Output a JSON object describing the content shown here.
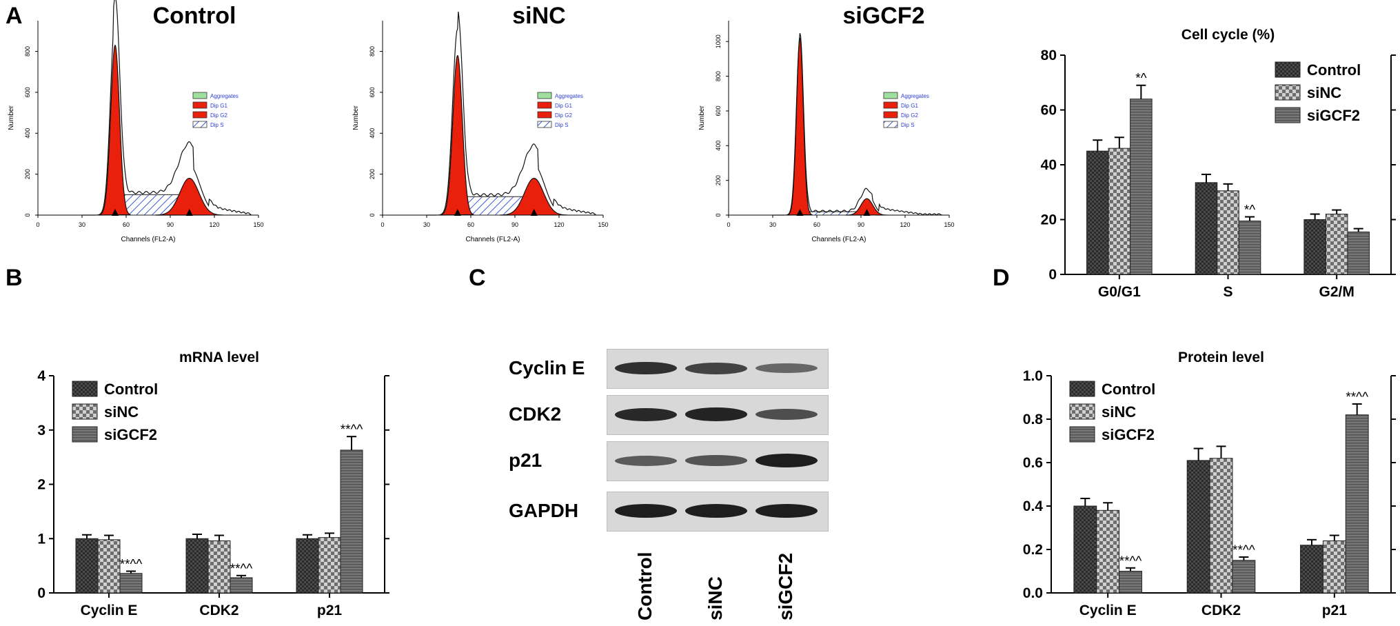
{
  "panels": {
    "A": "A",
    "B": "B",
    "C": "C",
    "D": "D"
  },
  "flow": {
    "titles": [
      "Control",
      "siNC",
      "siGCF2"
    ],
    "xlabel": "Channels (FL2-A)",
    "ylabel": "Number",
    "xticks": [
      "0",
      "30",
      "60",
      "90",
      "120",
      "150"
    ],
    "yticks": [
      [
        "0",
        "200",
        "400",
        "600",
        "800"
      ],
      [
        "0",
        "200",
        "400",
        "600",
        "800"
      ],
      [
        "0",
        "200",
        "400",
        "600",
        "800",
        "1000"
      ]
    ],
    "legend": [
      "Aggregates",
      "Dip G1",
      "Dip G2",
      "Dip S"
    ],
    "colors": {
      "g1": "#e8200c",
      "s_hatch": "#3d5bd6",
      "aggregates": "#9fe09f",
      "legend_text": "#2b3fd8"
    }
  },
  "blot": {
    "rows": [
      "Cyclin E",
      "CDK2",
      "p21",
      "GAPDH"
    ],
    "lanes": [
      "Control",
      "siNC",
      "siGCF2"
    ],
    "band_intensity": [
      [
        0.85,
        0.7,
        0.4
      ],
      [
        0.9,
        0.95,
        0.6
      ],
      [
        0.5,
        0.55,
        1.0
      ],
      [
        1.0,
        1.0,
        1.0
      ]
    ]
  },
  "chart_data": [
    {
      "type": "bar",
      "title": "Cell cycle  (%)",
      "xlabel": "",
      "ylabel": "",
      "categories": [
        "G0/G1",
        "S",
        "G2/M"
      ],
      "ylim": [
        0,
        80
      ],
      "yticks": [
        "0",
        "20",
        "40",
        "60",
        "80"
      ],
      "legend_position": "top-right",
      "series": [
        {
          "name": "Control",
          "values": [
            45,
            33.5,
            20
          ],
          "errors": [
            4,
            3,
            2
          ]
        },
        {
          "name": "siNC",
          "values": [
            46,
            30.5,
            22
          ],
          "errors": [
            4,
            2.5,
            1.5
          ]
        },
        {
          "name": "siGCF2",
          "values": [
            64,
            19.5,
            15.5
          ],
          "errors": [
            5,
            1.5,
            1.2
          ]
        }
      ],
      "annotations": [
        {
          "category": "G0/G1",
          "series": "siGCF2",
          "text": "*^"
        },
        {
          "category": "S",
          "series": "siGCF2",
          "text": "*^"
        }
      ]
    },
    {
      "type": "bar",
      "title": "mRNA level",
      "xlabel": "",
      "ylabel": "",
      "categories": [
        "Cyclin E",
        "CDK2",
        "p21"
      ],
      "ylim": [
        0,
        4
      ],
      "yticks": [
        "0",
        "1",
        "2",
        "3",
        "4"
      ],
      "legend_position": "top-left",
      "series": [
        {
          "name": "Control",
          "values": [
            1.0,
            1.0,
            1.0
          ],
          "errors": [
            0.07,
            0.08,
            0.07
          ]
        },
        {
          "name": "siNC",
          "values": [
            0.98,
            0.96,
            1.02
          ],
          "errors": [
            0.08,
            0.1,
            0.08
          ]
        },
        {
          "name": "siGCF2",
          "values": [
            0.36,
            0.28,
            2.63
          ],
          "errors": [
            0.04,
            0.04,
            0.25
          ]
        }
      ],
      "annotations": [
        {
          "category": "Cyclin E",
          "series": "siGCF2",
          "text": "**^^"
        },
        {
          "category": "CDK2",
          "series": "siGCF2",
          "text": "**^^"
        },
        {
          "category": "p21",
          "series": "siGCF2",
          "text": "**^^"
        }
      ]
    },
    {
      "type": "bar",
      "title": "Protein level",
      "xlabel": "",
      "ylabel": "",
      "categories": [
        "Cyclin E",
        "CDK2",
        "p21"
      ],
      "ylim": [
        0,
        1.0
      ],
      "yticks": [
        "0.0",
        "0.2",
        "0.4",
        "0.6",
        "0.8",
        "1.0"
      ],
      "legend_position": "top-left",
      "series": [
        {
          "name": "Control",
          "values": [
            0.4,
            0.61,
            0.22
          ],
          "errors": [
            0.035,
            0.055,
            0.025
          ]
        },
        {
          "name": "siNC",
          "values": [
            0.38,
            0.62,
            0.24
          ],
          "errors": [
            0.035,
            0.055,
            0.025
          ]
        },
        {
          "name": "siGCF2",
          "values": [
            0.1,
            0.15,
            0.82
          ],
          "errors": [
            0.015,
            0.015,
            0.05
          ]
        }
      ],
      "annotations": [
        {
          "category": "Cyclin E",
          "series": "siGCF2",
          "text": "**^^"
        },
        {
          "category": "CDK2",
          "series": "siGCF2",
          "text": "**^^"
        },
        {
          "category": "p21",
          "series": "siGCF2",
          "text": "**^^"
        }
      ]
    }
  ]
}
